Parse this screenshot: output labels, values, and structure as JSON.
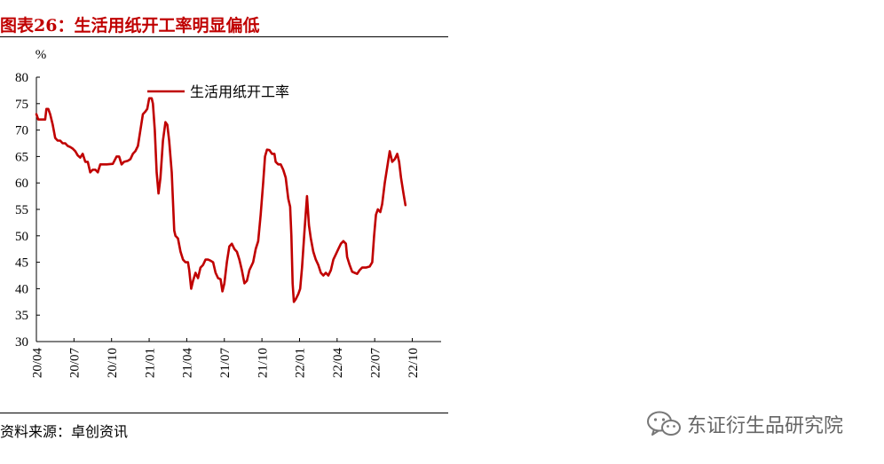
{
  "header": {
    "title": "图表26：生活用纸开工率明显偏低"
  },
  "footer": {
    "source": "资料来源：卓创资讯",
    "watermark": "东证衍生品研究院",
    "watermark_icon": "wechat-icon"
  },
  "colors": {
    "series": "#c00000",
    "title": "#c00000"
  },
  "chart_data": {
    "type": "line",
    "title": "",
    "ylabel": "%",
    "xlabel": "",
    "ylim": [
      30,
      80
    ],
    "yticks": [
      30,
      35,
      40,
      45,
      50,
      55,
      60,
      65,
      70,
      75,
      80
    ],
    "xticks": [
      "20/04",
      "20/07",
      "20/10",
      "21/01",
      "21/04",
      "21/07",
      "21/10",
      "22/01",
      "22/04",
      "22/07",
      "22/10"
    ],
    "xtick_months": [
      0,
      3,
      6,
      9,
      12,
      15,
      18,
      21,
      24,
      27,
      30
    ],
    "xlim_months": [
      0,
      32.3
    ],
    "legend": {
      "position": "top-left"
    },
    "grid": false,
    "series": [
      {
        "name": "生活用纸开工率",
        "color": "#c00000",
        "points": [
          [
            0.0,
            73
          ],
          [
            0.15,
            72
          ],
          [
            0.4,
            72
          ],
          [
            0.7,
            72
          ],
          [
            0.8,
            74
          ],
          [
            0.95,
            74
          ],
          [
            1.1,
            73
          ],
          [
            1.3,
            71
          ],
          [
            1.5,
            68.5
          ],
          [
            1.7,
            68
          ],
          [
            1.9,
            68
          ],
          [
            2.1,
            67.5
          ],
          [
            2.3,
            67.5
          ],
          [
            2.5,
            67
          ],
          [
            2.7,
            66.8
          ],
          [
            2.9,
            66.5
          ],
          [
            3.1,
            66
          ],
          [
            3.3,
            65.2
          ],
          [
            3.5,
            64.8
          ],
          [
            3.7,
            65.5
          ],
          [
            3.9,
            64
          ],
          [
            4.1,
            64
          ],
          [
            4.3,
            62
          ],
          [
            4.5,
            62.5
          ],
          [
            4.7,
            62.5
          ],
          [
            4.9,
            62
          ],
          [
            5.1,
            63.5
          ],
          [
            5.3,
            63.5
          ],
          [
            5.6,
            63.5
          ],
          [
            6.1,
            63.6
          ],
          [
            6.4,
            65
          ],
          [
            6.6,
            65
          ],
          [
            6.8,
            63.5
          ],
          [
            7.0,
            64
          ],
          [
            7.3,
            64.2
          ],
          [
            7.5,
            64.5
          ],
          [
            7.7,
            65.5
          ],
          [
            7.9,
            66
          ],
          [
            8.1,
            67
          ],
          [
            8.3,
            70
          ],
          [
            8.5,
            73
          ],
          [
            8.7,
            73.5
          ],
          [
            8.85,
            74
          ],
          [
            9.0,
            76
          ],
          [
            9.2,
            76
          ],
          [
            9.3,
            75
          ],
          [
            9.45,
            70
          ],
          [
            9.6,
            62
          ],
          [
            9.75,
            58
          ],
          [
            9.9,
            61
          ],
          [
            10.1,
            68
          ],
          [
            10.3,
            71.5
          ],
          [
            10.45,
            71
          ],
          [
            10.6,
            68
          ],
          [
            10.8,
            62
          ],
          [
            11.0,
            51
          ],
          [
            11.1,
            50
          ],
          [
            11.3,
            49.5
          ],
          [
            11.5,
            47
          ],
          [
            11.7,
            45.5
          ],
          [
            11.9,
            45
          ],
          [
            12.1,
            45
          ],
          [
            12.2,
            43.5
          ],
          [
            12.35,
            40
          ],
          [
            12.5,
            41.5
          ],
          [
            12.7,
            43
          ],
          [
            12.9,
            42
          ],
          [
            13.1,
            44
          ],
          [
            13.3,
            44.5
          ],
          [
            13.5,
            45.5
          ],
          [
            13.7,
            45.5
          ],
          [
            13.9,
            45.3
          ],
          [
            14.1,
            45
          ],
          [
            14.3,
            43
          ],
          [
            14.5,
            42
          ],
          [
            14.7,
            41.8
          ],
          [
            14.85,
            39.5
          ],
          [
            15.0,
            41
          ],
          [
            15.2,
            45
          ],
          [
            15.4,
            48
          ],
          [
            15.6,
            48.5
          ],
          [
            15.8,
            47.5
          ],
          [
            16.0,
            47
          ],
          [
            16.2,
            45.5
          ],
          [
            16.4,
            43.5
          ],
          [
            16.6,
            41
          ],
          [
            16.8,
            41.5
          ],
          [
            17.0,
            43.5
          ],
          [
            17.3,
            45
          ],
          [
            17.5,
            47.5
          ],
          [
            17.7,
            49
          ],
          [
            17.9,
            54
          ],
          [
            18.1,
            60
          ],
          [
            18.25,
            65
          ],
          [
            18.4,
            66.3
          ],
          [
            18.6,
            66.2
          ],
          [
            18.8,
            65.5
          ],
          [
            19.0,
            65.5
          ],
          [
            19.1,
            64
          ],
          [
            19.3,
            63.5
          ],
          [
            19.5,
            63.5
          ],
          [
            19.7,
            62.5
          ],
          [
            19.9,
            61
          ],
          [
            20.1,
            57
          ],
          [
            20.25,
            55.5
          ],
          [
            20.35,
            50
          ],
          [
            20.45,
            41
          ],
          [
            20.55,
            37.5
          ],
          [
            20.7,
            38
          ],
          [
            20.9,
            39
          ],
          [
            21.05,
            40
          ],
          [
            21.2,
            44
          ],
          [
            21.4,
            51
          ],
          [
            21.6,
            57.5
          ],
          [
            21.75,
            52
          ],
          [
            21.9,
            49.5
          ],
          [
            22.1,
            47
          ],
          [
            22.3,
            45.5
          ],
          [
            22.5,
            44.5
          ],
          [
            22.7,
            43
          ],
          [
            22.9,
            42.5
          ],
          [
            23.1,
            43
          ],
          [
            23.3,
            42.5
          ],
          [
            23.5,
            43.5
          ],
          [
            23.7,
            45.5
          ],
          [
            23.9,
            46.5
          ],
          [
            24.1,
            47.5
          ],
          [
            24.3,
            48.5
          ],
          [
            24.5,
            49
          ],
          [
            24.7,
            48.5
          ],
          [
            24.8,
            46
          ],
          [
            25.0,
            44.5
          ],
          [
            25.2,
            43.2
          ],
          [
            25.4,
            43
          ],
          [
            25.6,
            42.8
          ],
          [
            25.8,
            43.5
          ],
          [
            26.0,
            44
          ],
          [
            26.3,
            44
          ],
          [
            26.6,
            44.2
          ],
          [
            26.8,
            45
          ],
          [
            26.95,
            50
          ],
          [
            27.1,
            54
          ],
          [
            27.25,
            55
          ],
          [
            27.45,
            54.5
          ],
          [
            27.6,
            56
          ],
          [
            27.8,
            60
          ],
          [
            28.0,
            63
          ],
          [
            28.2,
            66
          ],
          [
            28.4,
            64
          ],
          [
            28.6,
            64.5
          ],
          [
            28.8,
            65.5
          ],
          [
            28.95,
            64
          ],
          [
            29.1,
            61
          ],
          [
            29.3,
            58
          ],
          [
            29.45,
            55.8
          ]
        ]
      }
    ]
  }
}
